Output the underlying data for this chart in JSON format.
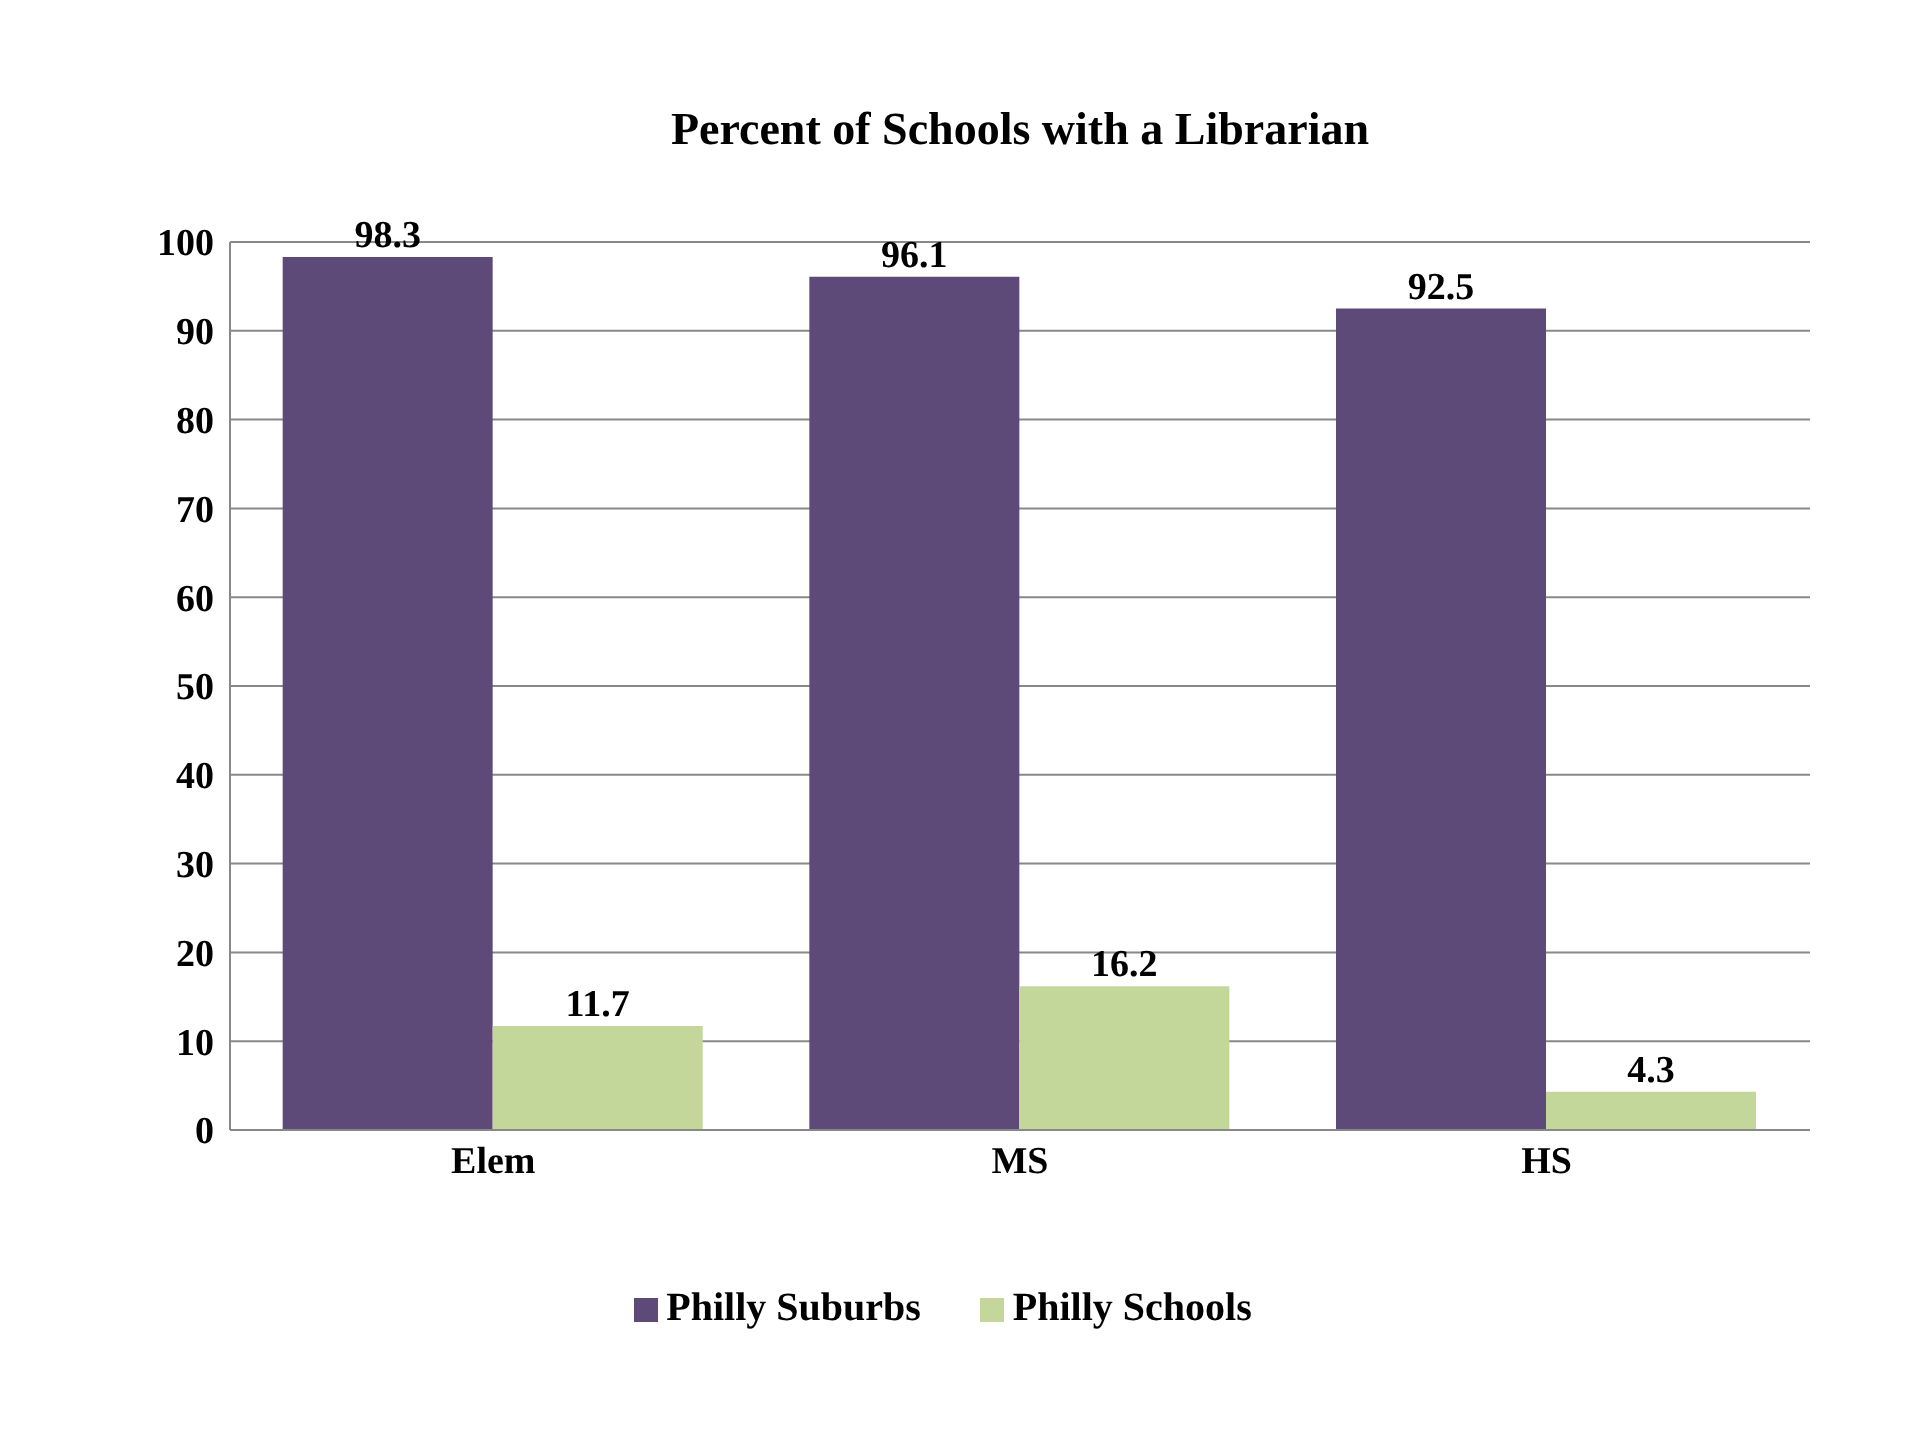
{
  "chart_data": {
    "type": "bar",
    "title": "Percent of Schools with a Librarian",
    "categories": [
      "Elem",
      "MS",
      "HS"
    ],
    "series": [
      {
        "name": "Philly Suburbs",
        "color": "#5e4a78",
        "values": [
          98.3,
          96.1,
          92.5
        ]
      },
      {
        "name": "Philly Schools",
        "color": "#c4d79b",
        "values": [
          11.7,
          16.2,
          4.3
        ]
      }
    ],
    "ylim": [
      0,
      100
    ],
    "yticks": [
      0,
      10,
      20,
      30,
      40,
      50,
      60,
      70,
      80,
      90,
      100
    ],
    "grid": "y",
    "legend": "bottom",
    "data_labels": true
  }
}
